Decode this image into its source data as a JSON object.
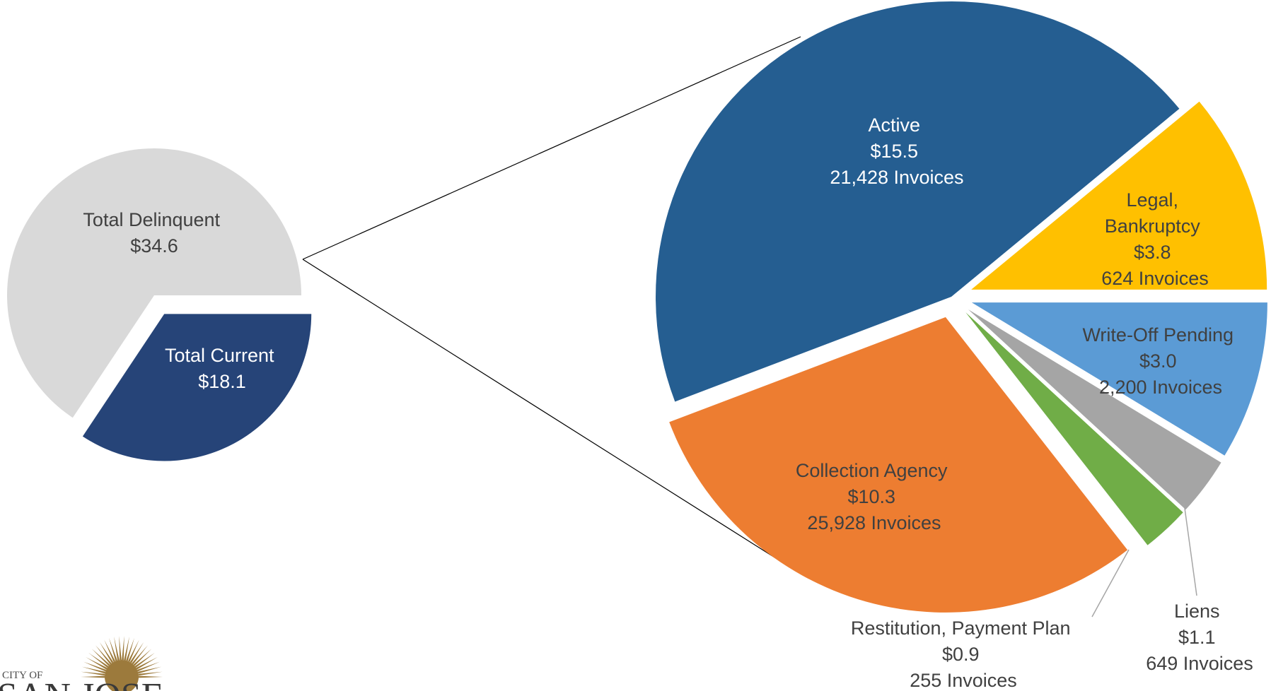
{
  "chart_data": [
    {
      "type": "pie",
      "slices": [
        {
          "label": "Total Delinquent",
          "value_text": "$34.6",
          "value": 34.6,
          "color": "#d9d9d9",
          "text_color": "#404040"
        },
        {
          "label": "Total Current",
          "value_text": "$18.1",
          "value": 18.1,
          "color": "#264478",
          "text_color": "#ffffff"
        }
      ]
    },
    {
      "type": "pie",
      "slices": [
        {
          "label": "Active",
          "value_text": "$15.5",
          "value": 15.5,
          "invoices": "21,428 Invoices",
          "color": "#255e91",
          "text_color": "#ffffff"
        },
        {
          "label": "Legal, Bankruptcy",
          "label_lines": [
            "Legal,",
            "Bankruptcy"
          ],
          "value_text": "$3.8",
          "value": 3.8,
          "invoices": "624 Invoices",
          "color": "#ffc000",
          "text_color": "#404040"
        },
        {
          "label": "Write-Off Pending",
          "value_text": "$3.0",
          "value": 3.0,
          "invoices": "2,200 Invoices",
          "color": "#5b9bd5",
          "text_color": "#404040"
        },
        {
          "label": "Liens",
          "value_text": "$1.1",
          "value": 1.1,
          "invoices": "649 Invoices",
          "color": "#a5a5a5",
          "text_color": "#404040"
        },
        {
          "label": "Restitution, Payment Plan",
          "value_text": "$0.9",
          "value": 0.9,
          "invoices": "255 Invoices",
          "color": "#70ad47",
          "text_color": "#404040"
        },
        {
          "label": "Collection Agency",
          "value_text": "$10.3",
          "value": 10.3,
          "invoices": "25,928 Invoices",
          "color": "#ed7d31",
          "text_color": "#404040"
        }
      ]
    }
  ],
  "logo": {
    "line1": "CITY OF",
    "line2": "SAN JOSE",
    "icon": "sun-logo-icon",
    "color": "#9c7a3c"
  }
}
